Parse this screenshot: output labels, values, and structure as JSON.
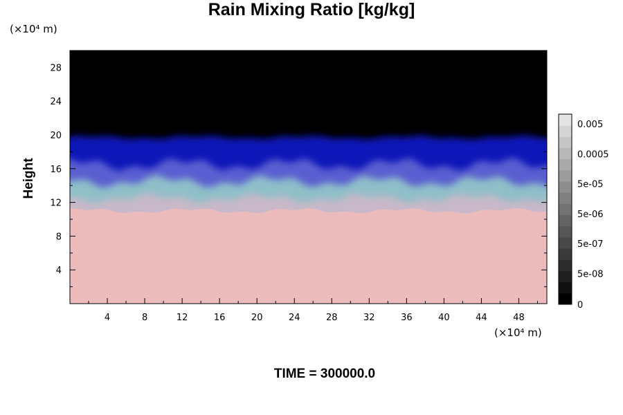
{
  "chart_data": {
    "type": "heatmap",
    "title": "Rain Mixing Ratio [kg/kg]",
    "ylabel": "Height",
    "y_unit": "(×10⁴ m)",
    "x_unit": "(×10⁴ m)",
    "xlim": [
      0,
      51
    ],
    "ylim": [
      0,
      30
    ],
    "x_ticks": [
      "4",
      "8",
      "12",
      "16",
      "20",
      "24",
      "28",
      "32",
      "36",
      "40",
      "44",
      "48"
    ],
    "y_ticks": [
      "4",
      "8",
      "12",
      "16",
      "20",
      "24",
      "28"
    ],
    "colorbar": {
      "tick_labels": [
        "0.005",
        "0.0005",
        "5e-05",
        "5e-06",
        "5e-07",
        "5e-08",
        "0"
      ],
      "colors": [
        "#000000",
        "#101010",
        "#1e1e1e",
        "#2c2c2c",
        "#3a3a3a",
        "#484848",
        "#565656",
        "#646464",
        "#727272",
        "#808080",
        "#8e8e8e",
        "#9c9c9c",
        "#aaaaaa",
        "#b8b8b8",
        "#c6c6c6",
        "#d4d4d4",
        "#e4e4e4"
      ]
    },
    "field_colors": {
      "above_cloud": "#000000",
      "upper_layer": "#0f12b8",
      "mid_layer": "#5a5fd0",
      "cyan_layer": "#8fbfc8",
      "transition": "#c8b8c8",
      "lower_region": "#ecbcbc"
    },
    "layer_heights": {
      "cloud_top": 19.7,
      "upper_layer_bottom": 16.5,
      "mid_layer_bottom": 14.5,
      "cyan_layer_bottom": 12.5,
      "pink_top": 11.0
    },
    "time_label": "TIME = 300000.0"
  }
}
